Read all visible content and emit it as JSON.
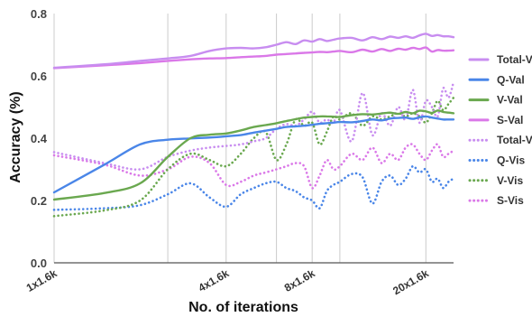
{
  "chart_data": {
    "type": "line",
    "xlabel": "No. of iterations",
    "ylabel": "Accuracy (%)",
    "x_scale": "log",
    "xlim": [
      1,
      25
    ],
    "ylim": [
      0,
      0.8
    ],
    "y_ticks": [
      0.0,
      0.2,
      0.4,
      0.6,
      0.8
    ],
    "x_ticks": [
      {
        "value": 1,
        "label": "1x1.6k"
      },
      {
        "value": 4,
        "label": "4x1.6k"
      },
      {
        "value": 8,
        "label": "8x1.6k"
      },
      {
        "value": 20,
        "label": "20x1.6k"
      }
    ],
    "grid": "vertical lines at x = 1, 2.5, 4, 6, 8, 10, 20",
    "legend_position": "right",
    "series": [
      {
        "name": "Total-Val",
        "color": "#c88df0",
        "dash": "solid",
        "points": [
          [
            1,
            0.626
          ],
          [
            1.5,
            0.637
          ],
          [
            2,
            0.648
          ],
          [
            2.5,
            0.656
          ],
          [
            3,
            0.664
          ],
          [
            3.5,
            0.68
          ],
          [
            4,
            0.688
          ],
          [
            4.5,
            0.69
          ],
          [
            5,
            0.688
          ],
          [
            5.5,
            0.692
          ],
          [
            6,
            0.7
          ],
          [
            6.5,
            0.708
          ],
          [
            7,
            0.702
          ],
          [
            7.5,
            0.714
          ],
          [
            8,
            0.71
          ],
          [
            8.5,
            0.718
          ],
          [
            9,
            0.712
          ],
          [
            9.5,
            0.716
          ],
          [
            10,
            0.72
          ],
          [
            11,
            0.722
          ],
          [
            12,
            0.714
          ],
          [
            13,
            0.724
          ],
          [
            14,
            0.718
          ],
          [
            15,
            0.726
          ],
          [
            16,
            0.722
          ],
          [
            17,
            0.727
          ],
          [
            18,
            0.722
          ],
          [
            19,
            0.73
          ],
          [
            20,
            0.735
          ],
          [
            21,
            0.728
          ],
          [
            22,
            0.731
          ],
          [
            23,
            0.727
          ],
          [
            24,
            0.727
          ],
          [
            25,
            0.724
          ]
        ]
      },
      {
        "name": "Q-Val",
        "color": "#4a86e8",
        "dash": "solid",
        "points": [
          [
            1,
            0.226
          ],
          [
            1.5,
            0.315
          ],
          [
            2,
            0.38
          ],
          [
            2.5,
            0.395
          ],
          [
            3,
            0.399
          ],
          [
            3.5,
            0.402
          ],
          [
            4,
            0.406
          ],
          [
            4.5,
            0.41
          ],
          [
            5,
            0.418
          ],
          [
            5.5,
            0.424
          ],
          [
            6,
            0.43
          ],
          [
            6.5,
            0.436
          ],
          [
            7,
            0.438
          ],
          [
            7.5,
            0.44
          ],
          [
            8,
            0.443
          ],
          [
            8.5,
            0.446
          ],
          [
            9,
            0.448
          ],
          [
            9.5,
            0.45
          ],
          [
            10,
            0.452
          ],
          [
            11,
            0.451
          ],
          [
            12,
            0.455
          ],
          [
            13,
            0.46
          ],
          [
            14,
            0.457
          ],
          [
            15,
            0.463
          ],
          [
            16,
            0.465
          ],
          [
            17,
            0.466
          ],
          [
            18,
            0.462
          ],
          [
            19,
            0.467
          ],
          [
            20,
            0.47
          ],
          [
            21,
            0.466
          ],
          [
            22,
            0.463
          ],
          [
            23,
            0.46
          ],
          [
            24,
            0.46
          ],
          [
            25,
            0.46
          ]
        ]
      },
      {
        "name": "V-Val",
        "color": "#6aa84f",
        "dash": "solid",
        "points": [
          [
            1,
            0.203
          ],
          [
            1.5,
            0.224
          ],
          [
            2,
            0.255
          ],
          [
            2.5,
            0.34
          ],
          [
            3,
            0.4
          ],
          [
            3.5,
            0.411
          ],
          [
            4,
            0.415
          ],
          [
            4.5,
            0.425
          ],
          [
            5,
            0.436
          ],
          [
            5.5,
            0.442
          ],
          [
            6,
            0.448
          ],
          [
            6.5,
            0.455
          ],
          [
            7,
            0.461
          ],
          [
            7.5,
            0.466
          ],
          [
            8,
            0.468
          ],
          [
            8.5,
            0.47
          ],
          [
            9,
            0.47
          ],
          [
            9.5,
            0.469
          ],
          [
            10,
            0.468
          ],
          [
            11,
            0.474
          ],
          [
            12,
            0.477
          ],
          [
            13,
            0.476
          ],
          [
            14,
            0.479
          ],
          [
            15,
            0.482
          ],
          [
            16,
            0.478
          ],
          [
            17,
            0.484
          ],
          [
            18,
            0.48
          ],
          [
            19,
            0.488
          ],
          [
            20,
            0.486
          ],
          [
            21,
            0.481
          ],
          [
            22,
            0.489
          ],
          [
            23,
            0.484
          ],
          [
            24,
            0.482
          ],
          [
            25,
            0.48
          ]
        ]
      },
      {
        "name": "S-Val",
        "color": "#da78e8",
        "dash": "solid",
        "points": [
          [
            1,
            0.625
          ],
          [
            1.5,
            0.634
          ],
          [
            2,
            0.641
          ],
          [
            2.5,
            0.648
          ],
          [
            3,
            0.653
          ],
          [
            3.5,
            0.656
          ],
          [
            4,
            0.657
          ],
          [
            4.5,
            0.66
          ],
          [
            5,
            0.662
          ],
          [
            5.5,
            0.664
          ],
          [
            6,
            0.668
          ],
          [
            6.5,
            0.67
          ],
          [
            7,
            0.672
          ],
          [
            7.5,
            0.674
          ],
          [
            8,
            0.675
          ],
          [
            8.5,
            0.677
          ],
          [
            9,
            0.676
          ],
          [
            9.5,
            0.678
          ],
          [
            10,
            0.68
          ],
          [
            11,
            0.676
          ],
          [
            12,
            0.684
          ],
          [
            13,
            0.678
          ],
          [
            14,
            0.686
          ],
          [
            15,
            0.68
          ],
          [
            16,
            0.687
          ],
          [
            17,
            0.684
          ],
          [
            18,
            0.69
          ],
          [
            19,
            0.686
          ],
          [
            20,
            0.691
          ],
          [
            21,
            0.678
          ],
          [
            22,
            0.683
          ],
          [
            23,
            0.681
          ],
          [
            24,
            0.681
          ],
          [
            25,
            0.682
          ]
        ]
      },
      {
        "name": "Total-Vis",
        "color": "#c88df0",
        "dash": "dotted",
        "points": [
          [
            1,
            0.355
          ],
          [
            1.5,
            0.32
          ],
          [
            2,
            0.3
          ],
          [
            2.5,
            0.34
          ],
          [
            3,
            0.36
          ],
          [
            3.5,
            0.37
          ],
          [
            4,
            0.375
          ],
          [
            4.5,
            0.38
          ],
          [
            5,
            0.39
          ],
          [
            5.5,
            0.4
          ],
          [
            6,
            0.43
          ],
          [
            6.5,
            0.445
          ],
          [
            7,
            0.44
          ],
          [
            7.5,
            0.46
          ],
          [
            8,
            0.485
          ],
          [
            8.5,
            0.45
          ],
          [
            9,
            0.46
          ],
          [
            9.5,
            0.45
          ],
          [
            10,
            0.49
          ],
          [
            11,
            0.39
          ],
          [
            12,
            0.545
          ],
          [
            13,
            0.41
          ],
          [
            14,
            0.48
          ],
          [
            15,
            0.44
          ],
          [
            16,
            0.5
          ],
          [
            17,
            0.46
          ],
          [
            18,
            0.555
          ],
          [
            19,
            0.45
          ],
          [
            20,
            0.52
          ],
          [
            21,
            0.5
          ],
          [
            22,
            0.47
          ],
          [
            23,
            0.56
          ],
          [
            24,
            0.53
          ],
          [
            25,
            0.58
          ]
        ]
      },
      {
        "name": "Q-Vis",
        "color": "#4a86e8",
        "dash": "dotted",
        "points": [
          [
            1,
            0.17
          ],
          [
            1.5,
            0.175
          ],
          [
            2,
            0.185
          ],
          [
            2.5,
            0.22
          ],
          [
            3,
            0.255
          ],
          [
            3.5,
            0.21
          ],
          [
            4,
            0.18
          ],
          [
            4.5,
            0.22
          ],
          [
            5,
            0.24
          ],
          [
            5.5,
            0.255
          ],
          [
            6,
            0.26
          ],
          [
            6.5,
            0.24
          ],
          [
            7,
            0.23
          ],
          [
            7.5,
            0.21
          ],
          [
            8,
            0.2
          ],
          [
            8.5,
            0.175
          ],
          [
            9,
            0.23
          ],
          [
            9.5,
            0.25
          ],
          [
            10,
            0.26
          ],
          [
            11,
            0.285
          ],
          [
            12,
            0.275
          ],
          [
            13,
            0.19
          ],
          [
            14,
            0.26
          ],
          [
            15,
            0.28
          ],
          [
            16,
            0.25
          ],
          [
            17,
            0.27
          ],
          [
            18,
            0.31
          ],
          [
            19,
            0.29
          ],
          [
            20,
            0.3
          ],
          [
            21,
            0.26
          ],
          [
            22,
            0.27
          ],
          [
            23,
            0.24
          ],
          [
            24,
            0.26
          ],
          [
            25,
            0.27
          ]
        ]
      },
      {
        "name": "V-Vis",
        "color": "#6aa84f",
        "dash": "dotted",
        "points": [
          [
            1,
            0.15
          ],
          [
            1.5,
            0.168
          ],
          [
            2,
            0.2
          ],
          [
            2.5,
            0.3
          ],
          [
            3,
            0.35
          ],
          [
            3.5,
            0.33
          ],
          [
            4,
            0.31
          ],
          [
            4.5,
            0.35
          ],
          [
            5,
            0.4
          ],
          [
            5.5,
            0.42
          ],
          [
            6,
            0.33
          ],
          [
            6.5,
            0.38
          ],
          [
            7,
            0.46
          ],
          [
            7.5,
            0.44
          ],
          [
            8,
            0.45
          ],
          [
            8.5,
            0.38
          ],
          [
            9,
            0.42
          ],
          [
            9.5,
            0.47
          ],
          [
            10,
            0.46
          ],
          [
            11,
            0.48
          ],
          [
            12,
            0.44
          ],
          [
            13,
            0.47
          ],
          [
            14,
            0.46
          ],
          [
            15,
            0.47
          ],
          [
            16,
            0.48
          ],
          [
            17,
            0.47
          ],
          [
            18,
            0.48
          ],
          [
            19,
            0.47
          ],
          [
            20,
            0.45
          ],
          [
            21,
            0.48
          ],
          [
            22,
            0.52
          ],
          [
            23,
            0.49
          ],
          [
            24,
            0.51
          ],
          [
            25,
            0.53
          ]
        ]
      },
      {
        "name": "S-Vis",
        "color": "#da78e8",
        "dash": "dotted",
        "points": [
          [
            1,
            0.345
          ],
          [
            1.5,
            0.315
          ],
          [
            2,
            0.28
          ],
          [
            2.5,
            0.3
          ],
          [
            3,
            0.34
          ],
          [
            3.5,
            0.32
          ],
          [
            4,
            0.25
          ],
          [
            4.5,
            0.26
          ],
          [
            5,
            0.28
          ],
          [
            5.5,
            0.29
          ],
          [
            6,
            0.3
          ],
          [
            6.5,
            0.31
          ],
          [
            7,
            0.32
          ],
          [
            7.5,
            0.31
          ],
          [
            8,
            0.24
          ],
          [
            8.5,
            0.28
          ],
          [
            9,
            0.33
          ],
          [
            9.5,
            0.3
          ],
          [
            10,
            0.31
          ],
          [
            11,
            0.35
          ],
          [
            12,
            0.33
          ],
          [
            13,
            0.37
          ],
          [
            14,
            0.32
          ],
          [
            15,
            0.35
          ],
          [
            16,
            0.33
          ],
          [
            17,
            0.37
          ],
          [
            18,
            0.38
          ],
          [
            19,
            0.35
          ],
          [
            20,
            0.33
          ],
          [
            21,
            0.36
          ],
          [
            22,
            0.38
          ],
          [
            23,
            0.34
          ],
          [
            24,
            0.35
          ],
          [
            25,
            0.36
          ]
        ]
      }
    ]
  }
}
